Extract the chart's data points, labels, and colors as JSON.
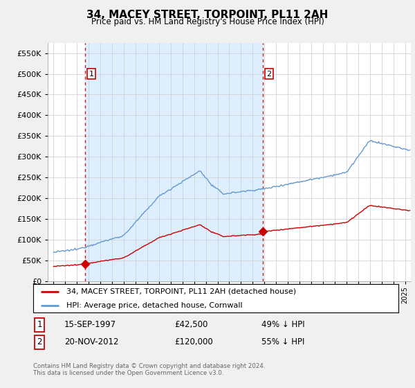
{
  "title": "34, MACEY STREET, TORPOINT, PL11 2AH",
  "subtitle": "Price paid vs. HM Land Registry's House Price Index (HPI)",
  "sale1_date": "15-SEP-1997",
  "sale1_price": 42500,
  "sale1_label": "49% ↓ HPI",
  "sale1_x": 1997.71,
  "sale2_date": "20-NOV-2012",
  "sale2_price": 120000,
  "sale2_label": "55% ↓ HPI",
  "sale2_x": 2012.88,
  "house_color": "#cc0000",
  "hpi_color": "#6699cc",
  "shade_color": "#ddeeff",
  "legend_house": "34, MACEY STREET, TORPOINT, PL11 2AH (detached house)",
  "legend_hpi": "HPI: Average price, detached house, Cornwall",
  "footer": "Contains HM Land Registry data © Crown copyright and database right 2024.\nThis data is licensed under the Open Government Licence v3.0.",
  "ylim": [
    0,
    575000
  ],
  "yticks": [
    0,
    50000,
    100000,
    150000,
    200000,
    250000,
    300000,
    350000,
    400000,
    450000,
    500000,
    550000
  ],
  "background_color": "#f0f0f0",
  "plot_bg": "#ffffff",
  "grid_color": "#cccccc"
}
